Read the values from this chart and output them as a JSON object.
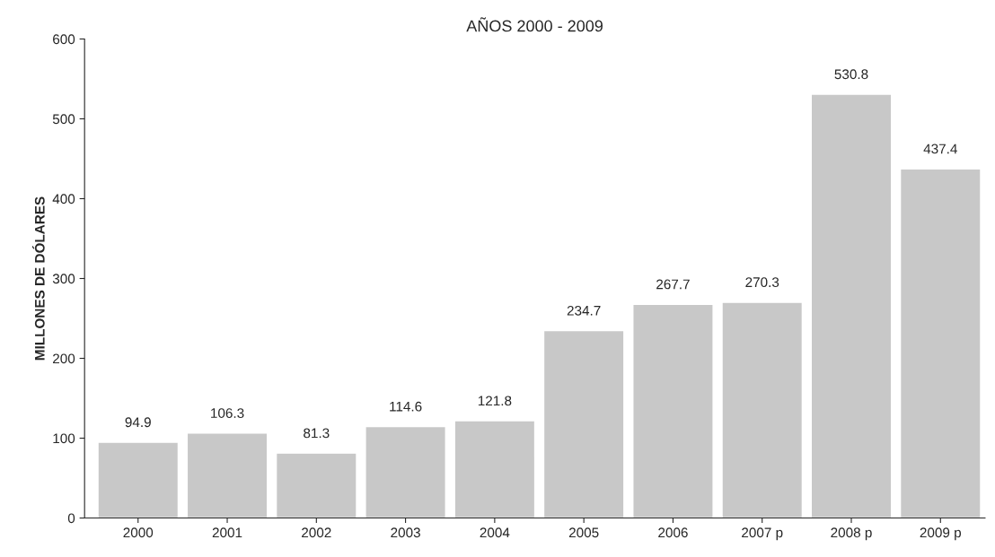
{
  "chart_data": {
    "type": "bar",
    "title": "AÑOS 2000 - 2009",
    "ylabel": "MILLONES DE DÓLARES",
    "categories": [
      "2000",
      "2001",
      "2002",
      "2003",
      "2004",
      "2005",
      "2006",
      "2007 p",
      "2008 p",
      "2009 p"
    ],
    "values": [
      94.9,
      106.3,
      81.3,
      114.6,
      121.8,
      234.7,
      267.7,
      270.3,
      530.8,
      437.4
    ],
    "color": "#c8c8c8",
    "ylim": [
      0,
      600
    ],
    "yticks": [
      0,
      100,
      200,
      300,
      400,
      500,
      600
    ],
    "data_labels": true,
    "grid": false
  }
}
